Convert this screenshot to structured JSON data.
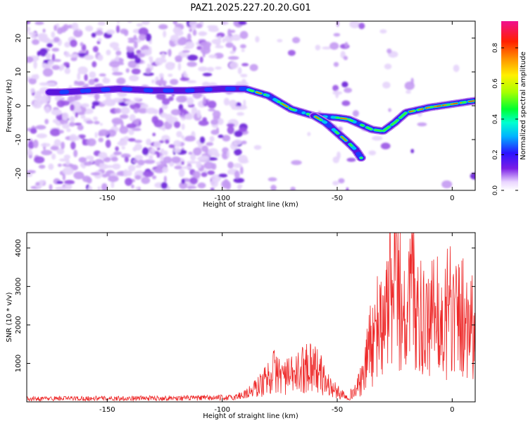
{
  "title": "PAZ1.2025.227.20.20.G01",
  "chart_data": [
    {
      "type": "heatmap",
      "xlabel": "Height of straight line (km)",
      "ylabel": "Frequency (Hz)",
      "xlim": [
        -185,
        10
      ],
      "ylim": [
        -25,
        25
      ],
      "xticks": [
        -150,
        -100,
        -50,
        0
      ],
      "yticks": [
        -20,
        -10,
        0,
        10,
        20
      ],
      "colorbar": {
        "label": "Normalized spectral amplitude",
        "range": [
          0,
          0.95
        ],
        "ticks": [
          0.0,
          0.2,
          0.4,
          0.6,
          0.8
        ],
        "colormap": "rainbow (white-violet-blue-cyan-green-yellow-orange-red-magenta)"
      },
      "ridge": {
        "x": [
          -185,
          -170,
          -145,
          -130,
          -115,
          -100,
          -90,
          -80,
          -70,
          -60,
          -50,
          -45,
          -40,
          -35,
          -30,
          -25,
          -20,
          -10,
          0,
          10
        ],
        "y": [
          4,
          4,
          5,
          4.5,
          4.5,
          5,
          5,
          3,
          -1,
          -3,
          -3.5,
          -4,
          -5.5,
          -7,
          -7.5,
          -5,
          -2,
          -0.5,
          0.5,
          1.5
        ]
      },
      "branch": {
        "x": [
          -60,
          -55,
          -50,
          -45,
          -42,
          -39
        ],
        "y": [
          -3,
          -5,
          -8,
          -11,
          -13,
          -16
        ]
      }
    },
    {
      "type": "line",
      "xlabel": "Height of straight line (km)",
      "ylabel": "SNR (10 * v/v)",
      "xlim": [
        -185,
        10
      ],
      "ylim": [
        0,
        4400
      ],
      "xticks": [
        -150,
        -100,
        -50,
        0
      ],
      "yticks": [
        1000,
        2000,
        3000,
        4000
      ],
      "line_color": "#ee2a2a",
      "envelope": {
        "x": [
          -185,
          -170,
          -150,
          -130,
          -110,
          -95,
          -88,
          -82,
          -78,
          -72,
          -68,
          -62,
          -58,
          -55,
          -50,
          -45,
          -42,
          -38,
          -36,
          -34,
          -32,
          -30,
          -28,
          -25,
          -22,
          -20,
          -18,
          -16,
          -14,
          -12,
          -10,
          -6,
          -2,
          2,
          6,
          10
        ],
        "y": [
          80,
          90,
          90,
          95,
          100,
          110,
          250,
          500,
          800,
          650,
          700,
          1000,
          800,
          500,
          250,
          150,
          300,
          700,
          1700,
          1300,
          2200,
          1600,
          2800,
          3100,
          2500,
          1800,
          3000,
          2700,
          2200,
          1700,
          1900,
          2000,
          2100,
          2200,
          2300,
          2000
        ]
      }
    }
  ]
}
